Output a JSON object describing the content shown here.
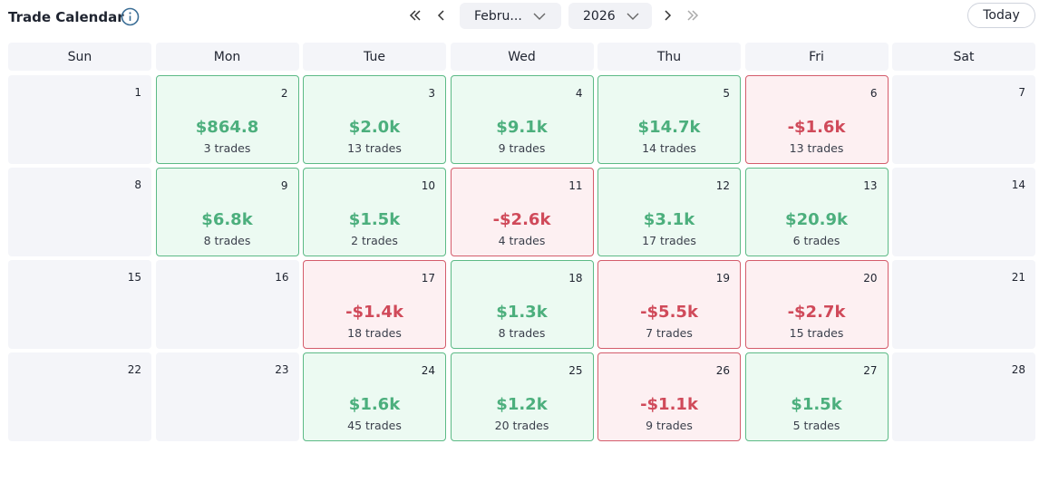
{
  "header": {
    "title": "Trade Calendar",
    "month": "Febru...",
    "year": "2026",
    "today_button": "Today"
  },
  "calendar": {
    "weekdays": [
      "Sun",
      "Mon",
      "Tue",
      "Wed",
      "Thu",
      "Fri",
      "Sat"
    ],
    "weeks": [
      [
        {
          "day": 1
        },
        {
          "day": 2,
          "pnl": "$864.8",
          "trades": "3 trades",
          "status": "profit"
        },
        {
          "day": 3,
          "pnl": "$2.0k",
          "trades": "13 trades",
          "status": "profit"
        },
        {
          "day": 4,
          "pnl": "$9.1k",
          "trades": "9 trades",
          "status": "profit"
        },
        {
          "day": 5,
          "pnl": "$14.7k",
          "trades": "14 trades",
          "status": "profit"
        },
        {
          "day": 6,
          "pnl": "-$1.6k",
          "trades": "13 trades",
          "status": "loss"
        },
        {
          "day": 7
        }
      ],
      [
        {
          "day": 8
        },
        {
          "day": 9,
          "pnl": "$6.8k",
          "trades": "8 trades",
          "status": "profit"
        },
        {
          "day": 10,
          "pnl": "$1.5k",
          "trades": "2 trades",
          "status": "profit"
        },
        {
          "day": 11,
          "pnl": "-$2.6k",
          "trades": "4 trades",
          "status": "loss"
        },
        {
          "day": 12,
          "pnl": "$3.1k",
          "trades": "17 trades",
          "status": "profit"
        },
        {
          "day": 13,
          "pnl": "$20.9k",
          "trades": "6 trades",
          "status": "profit"
        },
        {
          "day": 14
        }
      ],
      [
        {
          "day": 15
        },
        {
          "day": 16
        },
        {
          "day": 17,
          "pnl": "-$1.4k",
          "trades": "18 trades",
          "status": "loss"
        },
        {
          "day": 18,
          "pnl": "$1.3k",
          "trades": "8 trades",
          "status": "profit"
        },
        {
          "day": 19,
          "pnl": "-$5.5k",
          "trades": "7 trades",
          "status": "loss"
        },
        {
          "day": 20,
          "pnl": "-$2.7k",
          "trades": "15 trades",
          "status": "loss"
        },
        {
          "day": 21
        }
      ],
      [
        {
          "day": 22
        },
        {
          "day": 23
        },
        {
          "day": 24,
          "pnl": "$1.6k",
          "trades": "45 trades",
          "status": "profit"
        },
        {
          "day": 25,
          "pnl": "$1.2k",
          "trades": "20 trades",
          "status": "profit"
        },
        {
          "day": 26,
          "pnl": "-$1.1k",
          "trades": "9 trades",
          "status": "loss"
        },
        {
          "day": 27,
          "pnl": "$1.5k",
          "trades": "5 trades",
          "status": "profit"
        },
        {
          "day": 28
        }
      ]
    ]
  }
}
